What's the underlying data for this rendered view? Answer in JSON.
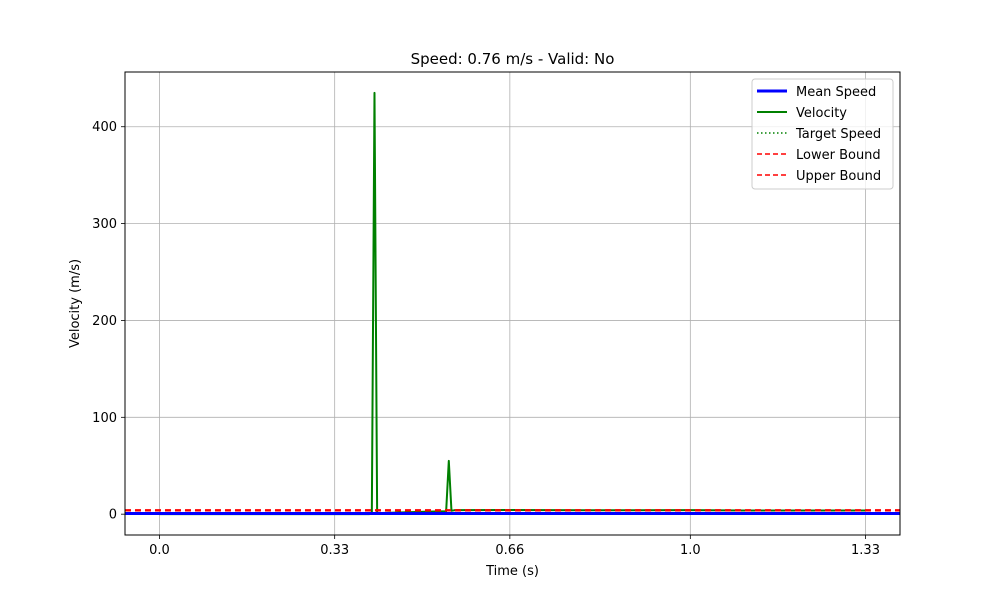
{
  "chart_data": {
    "type": "line",
    "title": "Speed: 0.76 m/s - Valid: No",
    "xlabel": "Time (s)",
    "ylabel": "Velocity (m/s)",
    "xlim": [
      -0.065,
      1.395
    ],
    "ylim": [
      -21.5,
      456.5
    ],
    "x_ticks": [
      0.0,
      0.33,
      0.66,
      1.0,
      1.33
    ],
    "x_tick_labels": [
      "0.0",
      "0.33",
      "0.66",
      "1.0",
      "1.33"
    ],
    "y_ticks": [
      0,
      100,
      200,
      300,
      400
    ],
    "y_tick_labels": [
      "0",
      "100",
      "200",
      "300",
      "400"
    ],
    "grid": true,
    "legend_position": "top-right",
    "series": [
      {
        "name": "Mean Speed",
        "color": "#0000ff",
        "style": "solid",
        "x": [
          -0.065,
          1.395
        ],
        "y": [
          0.76,
          0.76
        ]
      },
      {
        "name": "Velocity",
        "color": "#008000",
        "style": "solid",
        "x": [
          0.0,
          0.35,
          0.395,
          0.4,
          0.405,
          0.41,
          0.415,
          0.42,
          0.5,
          0.54,
          0.545,
          0.55,
          0.555,
          0.56,
          0.66,
          0.8,
          1.0,
          1.1,
          1.2,
          1.333
        ],
        "y": [
          0,
          0,
          0,
          0.5,
          435,
          0.5,
          0.8,
          1.2,
          2.5,
          3,
          55,
          3.5,
          4,
          4.2,
          4.3,
          4,
          4.2,
          3.8,
          3.8,
          3.8
        ]
      },
      {
        "name": "Target Speed",
        "color": "#008000",
        "style": "dotted",
        "x": [],
        "y": []
      },
      {
        "name": "Lower Bound",
        "color": "#ff0000",
        "style": "dashed",
        "x": [
          -0.065,
          1.395
        ],
        "y": [
          3.6,
          3.6
        ]
      },
      {
        "name": "Upper Bound",
        "color": "#ff0000",
        "style": "dashed",
        "x": [
          -0.065,
          1.395
        ],
        "y": [
          4.4,
          4.4
        ]
      }
    ]
  }
}
